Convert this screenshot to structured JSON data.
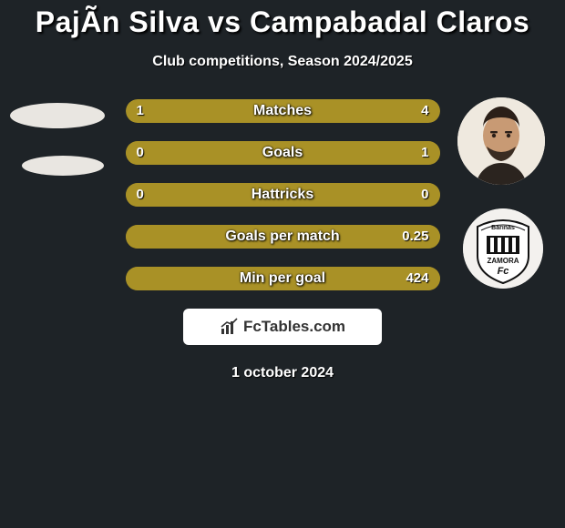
{
  "title": "PajÃn Silva vs Campabadal Claros",
  "subtitle": "Club competitions, Season 2024/2025",
  "date": "1 october 2024",
  "brand": "FcTables.com",
  "colors": {
    "left_accent": "#a99126",
    "right_accent": "#a99126",
    "bar_empty_bg": "#3a3f35",
    "background": "#1e2327"
  },
  "rows": [
    {
      "label": "Matches",
      "left": "1",
      "right": "4",
      "left_pct": 20,
      "right_pct": 80
    },
    {
      "label": "Goals",
      "left": "0",
      "right": "1",
      "left_pct": 0,
      "right_pct": 100
    },
    {
      "label": "Hattricks",
      "left": "0",
      "right": "0",
      "left_pct": 0,
      "right_pct": 0
    },
    {
      "label": "Goals per match",
      "left": "",
      "right": "0.25",
      "left_pct": 0,
      "right_pct": 100
    },
    {
      "label": "Min per goal",
      "left": "",
      "right": "424",
      "left_pct": 0,
      "right_pct": 100
    }
  ],
  "right_badge_text": {
    "top": "Barinas",
    "name": "ZAMORA",
    "sub": "Fc"
  }
}
